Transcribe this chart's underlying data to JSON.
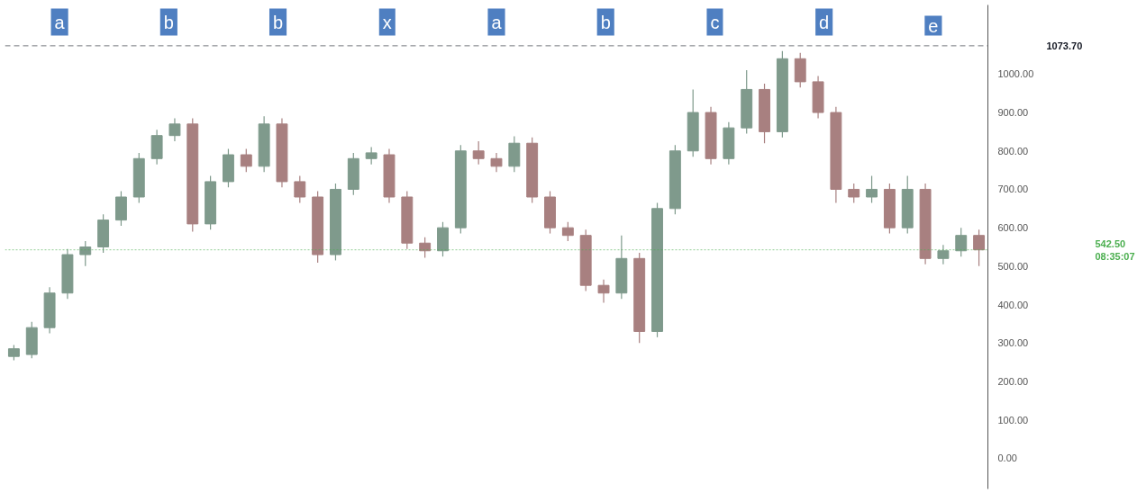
{
  "chart_data": {
    "type": "candlestick",
    "colors": [
      "#7f9a8c",
      "#7f9a8c",
      "#7f9a8c",
      "#7f9a8c",
      "#7f9a8c",
      "#7f9a8c",
      "#7f9a8c",
      "#7f9a8c",
      "#7f9a8c",
      "#7f9a8c",
      "#a88080",
      "#7f9a8c",
      "#7f9a8c",
      "#a88080",
      "#7f9a8c",
      "#a88080",
      "#a88080",
      "#a88080",
      "#7f9a8c",
      "#7f9a8c",
      "#7f9a8c",
      "#a88080",
      "#a88080",
      "#a88080",
      "#7f9a8c",
      "#7f9a8c",
      "#a88080",
      "#a88080",
      "#7f9a8c",
      "#a88080",
      "#a88080",
      "#a88080",
      "#a88080",
      "#a88080",
      "#7f9a8c",
      "#a88080",
      "#7f9a8c",
      "#7f9a8c",
      "#7f9a8c",
      "#a88080",
      "#7f9a8c",
      "#7f9a8c",
      "#a88080",
      "#7f9a8c",
      "#a88080",
      "#a88080",
      "#a88080",
      "#a88080",
      "#7f9a8c",
      "#a88080",
      "#7f9a8c",
      "#a88080",
      "#7f9a8c",
      "#7f9a8c",
      "#a88080"
    ],
    "categories": [
      null,
      null,
      null,
      null,
      null,
      null,
      null,
      null,
      null,
      null,
      null,
      null,
      null,
      null,
      null,
      null,
      null,
      null,
      null,
      null,
      null,
      null,
      null,
      null,
      null,
      null,
      null,
      null,
      null,
      null,
      null,
      null,
      null,
      null,
      null,
      null,
      null,
      null,
      null,
      null,
      null,
      null,
      null,
      null,
      null,
      null,
      null,
      null,
      null,
      null,
      null,
      null,
      null,
      null,
      null
    ],
    "ohlc": [
      [
        265,
        295,
        255,
        285
      ],
      [
        270,
        355,
        260,
        340
      ],
      [
        340,
        445,
        325,
        430
      ],
      [
        430,
        545,
        415,
        530
      ],
      [
        530,
        565,
        500,
        550
      ],
      [
        550,
        635,
        535,
        620
      ],
      [
        620,
        695,
        605,
        680
      ],
      [
        680,
        795,
        665,
        780
      ],
      [
        780,
        855,
        765,
        840
      ],
      [
        840,
        885,
        825,
        870
      ],
      [
        870,
        885,
        590,
        610
      ],
      [
        610,
        735,
        595,
        720
      ],
      [
        720,
        805,
        705,
        790
      ],
      [
        790,
        805,
        745,
        760
      ],
      [
        760,
        890,
        745,
        870
      ],
      [
        870,
        885,
        705,
        720
      ],
      [
        720,
        735,
        665,
        680
      ],
      [
        680,
        695,
        509,
        530
      ],
      [
        530,
        715,
        515,
        700
      ],
      [
        700,
        795,
        685,
        780
      ],
      [
        780,
        810,
        765,
        795
      ],
      [
        790,
        805,
        665,
        680
      ],
      [
        680,
        695,
        545,
        560
      ],
      [
        560,
        575,
        522,
        540
      ],
      [
        540,
        615,
        525,
        600
      ],
      [
        600,
        815,
        585,
        800
      ],
      [
        800,
        825,
        765,
        780
      ],
      [
        780,
        795,
        745,
        760
      ],
      [
        760,
        838,
        745,
        820
      ],
      [
        820,
        835,
        665,
        680
      ],
      [
        680,
        695,
        585,
        600
      ],
      [
        600,
        615,
        565,
        580
      ],
      [
        580,
        595,
        435,
        450
      ],
      [
        450,
        465,
        405,
        430
      ],
      [
        430,
        580,
        415,
        520
      ],
      [
        520,
        535,
        300,
        330
      ],
      [
        330,
        665,
        315,
        650
      ],
      [
        650,
        815,
        635,
        800
      ],
      [
        800,
        960,
        785,
        900
      ],
      [
        900,
        915,
        765,
        780
      ],
      [
        780,
        875,
        765,
        860
      ],
      [
        860,
        1010,
        845,
        960
      ],
      [
        960,
        975,
        820,
        850
      ],
      [
        850,
        1060,
        835,
        1040
      ],
      [
        1040,
        1055,
        965,
        980
      ],
      [
        980,
        995,
        885,
        900
      ],
      [
        900,
        915,
        665,
        700
      ],
      [
        700,
        715,
        665,
        680
      ],
      [
        680,
        735,
        665,
        700
      ],
      [
        700,
        715,
        585,
        600
      ],
      [
        600,
        735,
        585,
        700
      ],
      [
        700,
        715,
        505,
        520
      ],
      [
        520,
        555,
        505,
        540
      ],
      [
        540,
        600,
        525,
        580
      ],
      [
        580,
        595,
        500,
        542.5
      ]
    ],
    "ylim": [
      -80,
      1180
    ],
    "yticks": [
      {
        "value": 0,
        "label": "0.00"
      },
      {
        "value": 100,
        "label": "100.00"
      },
      {
        "value": 200,
        "label": "200.00"
      },
      {
        "value": 300,
        "label": "300.00"
      },
      {
        "value": 400,
        "label": "400.00"
      },
      {
        "value": 500,
        "label": "500.00"
      },
      {
        "value": 600,
        "label": "600.00"
      },
      {
        "value": 700,
        "label": "700.00"
      },
      {
        "value": 800,
        "label": "800.00"
      },
      {
        "value": 900,
        "label": "900.00"
      },
      {
        "value": 1000,
        "label": "1000.00"
      }
    ],
    "tick_labels": "y",
    "legend": false,
    "ref_lines": [
      {
        "axis": "y",
        "value": 1073.7,
        "label": "1073.70",
        "color": "#131722",
        "line_style": "dashed"
      },
      {
        "axis": "y",
        "value": 542.5,
        "label": "542.50\n08:35:07",
        "color": "#4caf50",
        "line_style": "dotted"
      }
    ],
    "annotations": [
      "a",
      "b",
      "b",
      "x",
      "a",
      "b",
      "c",
      "d",
      "e"
    ]
  }
}
